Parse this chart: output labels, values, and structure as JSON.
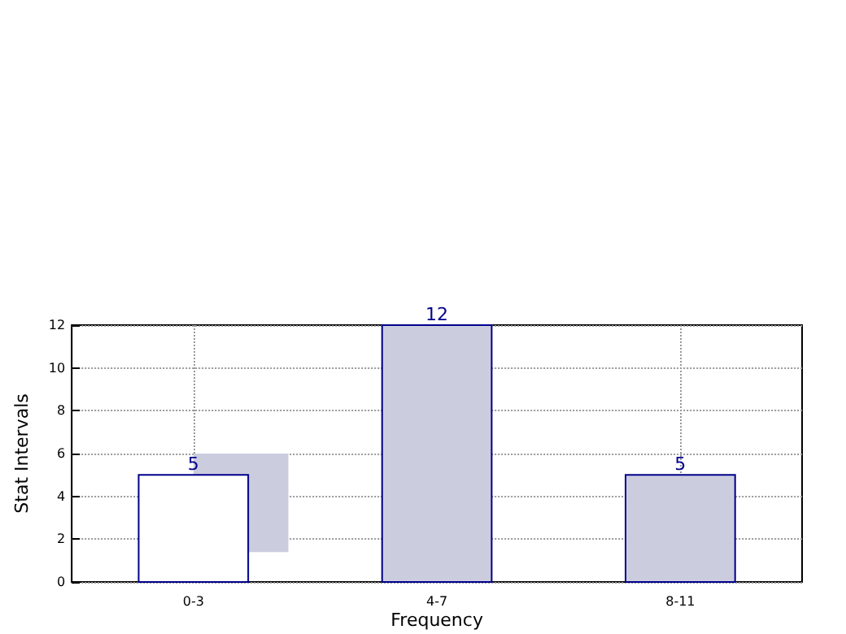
{
  "chart_data": {
    "type": "bar",
    "xlabel": "Frequency",
    "ylabel": "Stat Intervals",
    "categories": [
      "0-3",
      "4-7",
      "8-11"
    ],
    "series": [
      {
        "colors": [
          "#ffffff",
          "#ccccdf",
          "#ccccdf"
        ],
        "values": [
          5,
          12,
          5
        ],
        "data_labels": true
      },
      {
        "color": "#ccccdf",
        "values": [
          4.6,
          null,
          null
        ],
        "base": [
          1.4,
          null,
          null
        ]
      }
    ],
    "ylim": [
      0,
      12
    ],
    "yticks": [
      0,
      2,
      4,
      6,
      8,
      10,
      12
    ],
    "grid": true
  }
}
